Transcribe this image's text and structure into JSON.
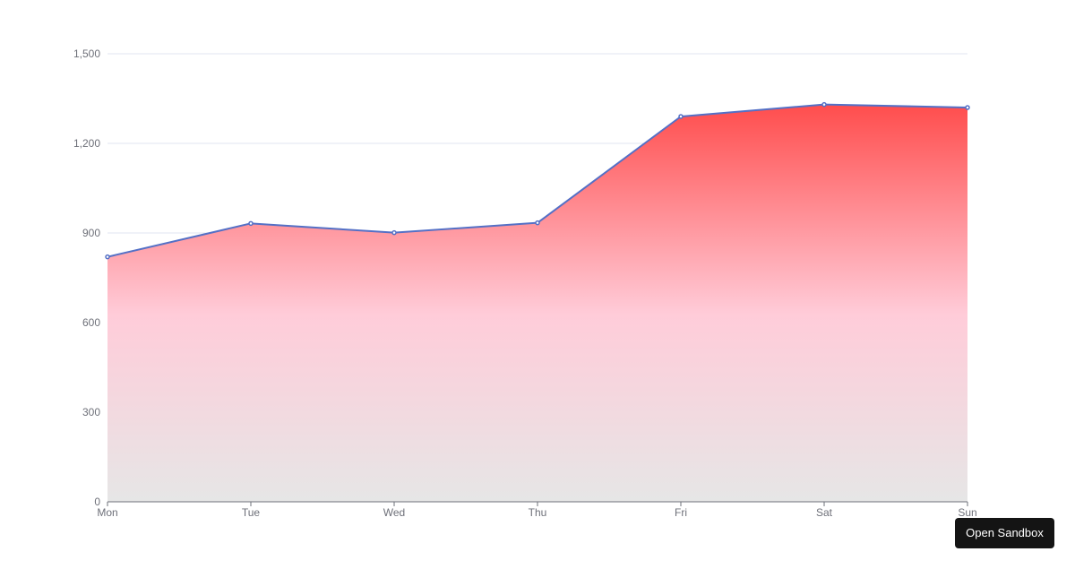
{
  "chart_data": {
    "type": "area",
    "title": "",
    "xlabel": "",
    "ylabel": "",
    "categories": [
      "Mon",
      "Tue",
      "Wed",
      "Thu",
      "Fri",
      "Sat",
      "Sun"
    ],
    "series": [
      {
        "values": [
          820,
          932,
          901,
          934,
          1290,
          1330,
          1320
        ]
      }
    ],
    "ylim": [
      0,
      1500
    ],
    "yticks": [
      0,
      300,
      600,
      900,
      1200,
      1500
    ],
    "ytick_labels": [
      "0",
      "300",
      "600",
      "900",
      "1,200",
      "1,500"
    ],
    "grid": true,
    "line_color": "#5470c6",
    "gradient_colors": [
      "#ff4d4d",
      "#ffccd9",
      "#e6e6e6"
    ]
  },
  "ui": {
    "sandbox_button_label": "Open Sandbox"
  }
}
